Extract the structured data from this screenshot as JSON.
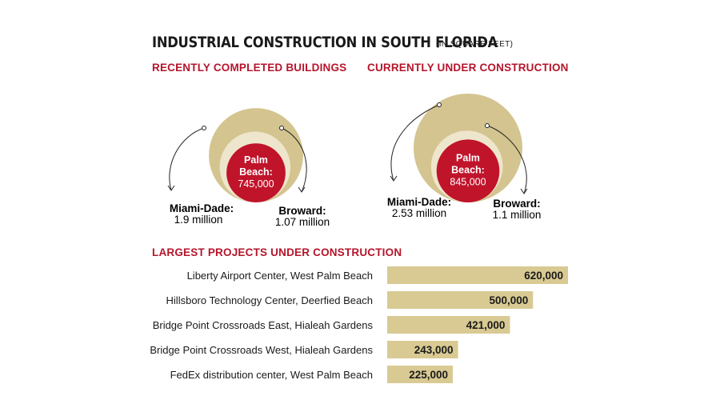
{
  "header": {
    "title": "INDUSTRIAL CONSTRUCTION IN SOUTH FLORIDA",
    "unit": "(IN SQUARE FEET)"
  },
  "sections": {
    "completed": "RECENTLY COMPLETED BUILDINGS",
    "under_construction": "CURRENTLY UNDER CONSTRUCTION",
    "projects": "LARGEST PROJECTS UNDER CONSTRUCTION"
  },
  "colors": {
    "miami_dade": "#d4c48f",
    "broward": "#eee6cc",
    "palm_beach": "#c0142b",
    "bar": "#d9ca93",
    "heading": "#b5152b"
  },
  "chart_data": [
    {
      "type": "nested-bubble",
      "title": "RECENTLY COMPLETED BUILDINGS",
      "units": "square feet",
      "items": [
        {
          "name": "Miami-Dade:",
          "value": 1900000,
          "label": "1.9 million"
        },
        {
          "name": "Broward:",
          "value": 1070000,
          "label": "1.07 million"
        },
        {
          "name": "Palm Beach:",
          "value": 745000,
          "label": "745,000"
        }
      ]
    },
    {
      "type": "nested-bubble",
      "title": "CURRENTLY UNDER CONSTRUCTION",
      "units": "square feet",
      "items": [
        {
          "name": "Miami-Dade:",
          "value": 2530000,
          "label": "2.53 million"
        },
        {
          "name": "Broward:",
          "value": 1100000,
          "label": "1.1 million"
        },
        {
          "name": "Palm Beach:",
          "value": 845000,
          "label": "845,000"
        }
      ]
    },
    {
      "type": "bar",
      "orientation": "horizontal",
      "title": "LARGEST PROJECTS UNDER CONSTRUCTION",
      "categories": [
        "Liberty Airport Center, West Palm Beach",
        "Hillsboro Technology Center, Deerfied Beach",
        "Bridge Point Crossroads East, Hialeah Gardens",
        "Bridge Point Crossroads West, Hialeah Gardens",
        "FedEx distribution center, West Palm Beach"
      ],
      "values": [
        620000,
        500000,
        421000,
        243000,
        225000
      ],
      "labels": [
        "620,000",
        "500,000",
        "421,000",
        "243,000",
        "225,000"
      ]
    }
  ]
}
